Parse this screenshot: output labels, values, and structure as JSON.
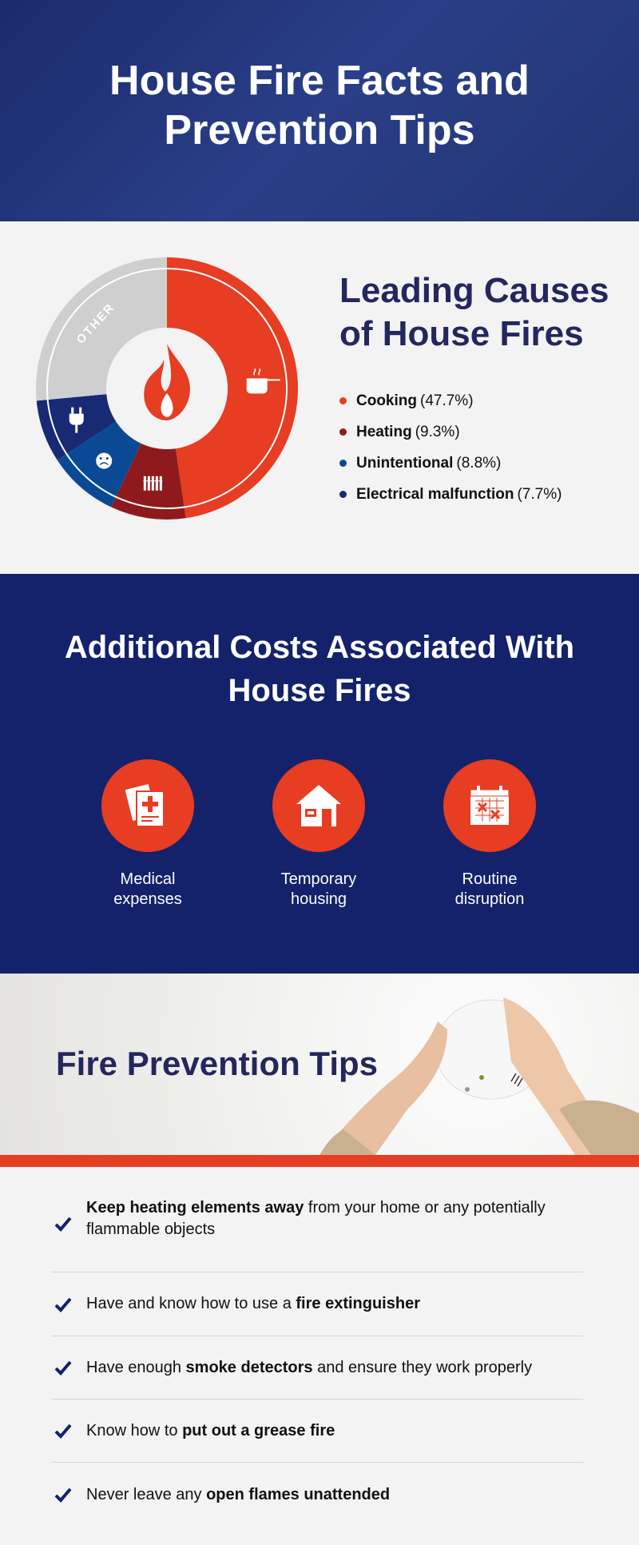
{
  "header": {
    "title": "House Fire Facts and Prevention Tips"
  },
  "causes": {
    "title": "Leading Causes of House Fires",
    "chart_data": {
      "type": "pie",
      "style": "donut",
      "title": "Leading Causes of House Fires",
      "slices": [
        {
          "name": "Cooking",
          "value": 47.7,
          "color": "#e63d23",
          "icon": "cooking-pot-icon"
        },
        {
          "name": "Heating",
          "value": 9.3,
          "color": "#8e1a1e",
          "icon": "radiator-icon"
        },
        {
          "name": "Unintentional",
          "value": 8.8,
          "color": "#0a4a94",
          "icon": "sad-face-icon"
        },
        {
          "name": "Electrical malfunction",
          "value": 7.7,
          "color": "#172a73",
          "icon": "plug-icon"
        },
        {
          "name": "Other",
          "value": 26.5,
          "color": "#cfcfcf",
          "label": "OTHER"
        }
      ],
      "center_icon": "flame-icon"
    },
    "legend": [
      {
        "label": "Cooking",
        "value": "(47.7%)",
        "color": "#e63d23"
      },
      {
        "label": "Heating",
        "value": "(9.3%)",
        "color": "#8e1a1e"
      },
      {
        "label": "Unintentional",
        "value": "(8.8%)",
        "color": "#0a4a94"
      },
      {
        "label": "Electrical malfunction",
        "value": "(7.7%)",
        "color": "#172a73"
      }
    ]
  },
  "costs": {
    "title": "Additional Costs Associated With House Fires",
    "items": [
      {
        "label": "Medical expenses",
        "icon": "medical-document-icon"
      },
      {
        "label": "Temporary housing",
        "icon": "house-icon"
      },
      {
        "label": "Routine disruption",
        "icon": "calendar-x-icon"
      }
    ]
  },
  "prevention": {
    "title": "Fire Prevention Tips",
    "tips": [
      {
        "pre": "",
        "bold": "Keep heating elements away",
        "post": " from your home or any potentially flammable objects"
      },
      {
        "pre": "Have and know how to use a ",
        "bold": "fire extinguisher",
        "post": ""
      },
      {
        "pre": "Have enough ",
        "bold": "smoke detectors",
        "post": " and ensure they work properly"
      },
      {
        "pre": "Know how to ",
        "bold": "put out a grease fire",
        "post": ""
      },
      {
        "pre": "Never leave any ",
        "bold": "open flames unattended",
        "post": ""
      }
    ]
  }
}
